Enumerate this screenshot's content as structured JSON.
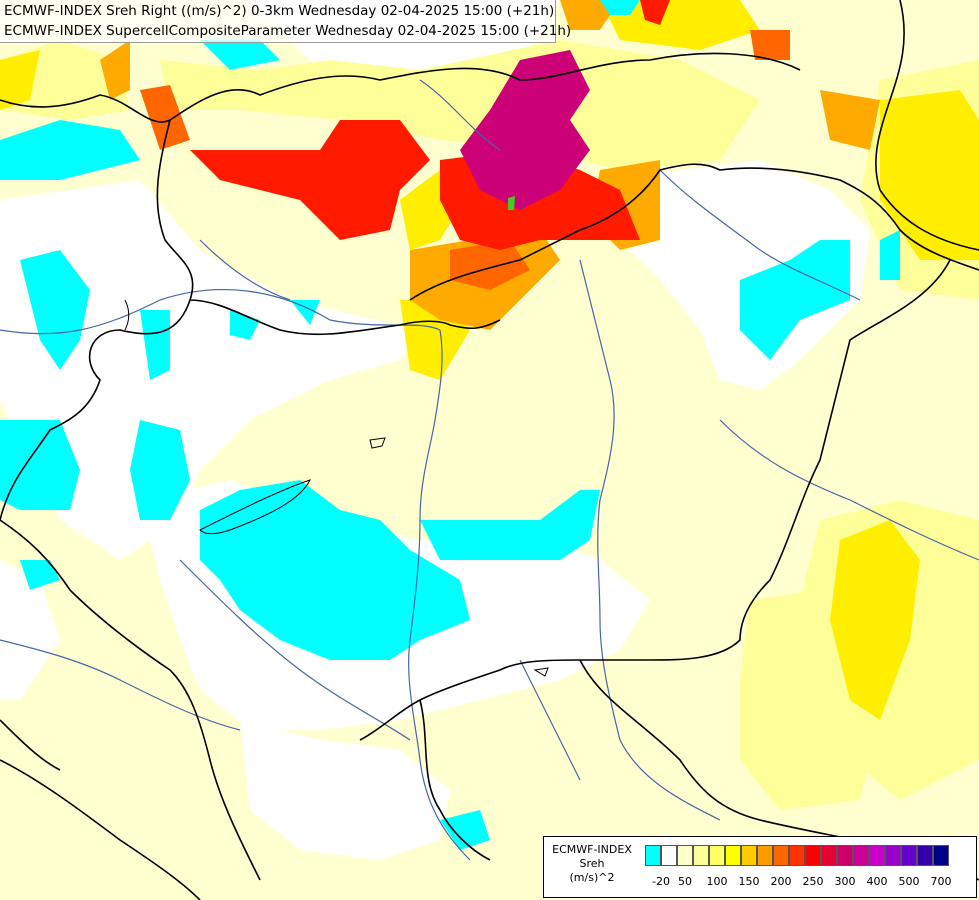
{
  "title": {
    "line1": "ECMWF-INDEX Sreh Right ((m/s)^2) 0-3km Wednesday 02-04-2025 15:00 (+21h)",
    "line2": "ECMWF-INDEX SupercellCompositeParameter Wednesday 02-04-2025 15:00 (+21h)"
  },
  "legend": {
    "title_lines": [
      "ECMWF-INDEX",
      "Sreh",
      "(m/s)^2"
    ],
    "colors": [
      "#00ffff",
      "#ffffff",
      "#ffffcc",
      "#ffff99",
      "#ffff66",
      "#ffff00",
      "#ffcc00",
      "#ff9900",
      "#ff6600",
      "#ff3300",
      "#ff0000",
      "#e60033",
      "#cc0066",
      "#cc0099",
      "#cc00cc",
      "#9900cc",
      "#6600cc",
      "#3300aa",
      "#000088"
    ],
    "tick_labels": [
      "-20",
      "50",
      "100",
      "150",
      "200",
      "250",
      "300",
      "400",
      "500",
      "700"
    ]
  },
  "palette": {
    "cyan": "#00ffff",
    "pale_yellow": "#ffffc4",
    "light_yellow": "#ffff99",
    "yellow": "#ffff00",
    "orange": "#ffb000",
    "red": "#ff2000",
    "crimson": "#e8004a",
    "magenta": "#cc0077",
    "border": "#000000",
    "river": "#4466aa"
  }
}
